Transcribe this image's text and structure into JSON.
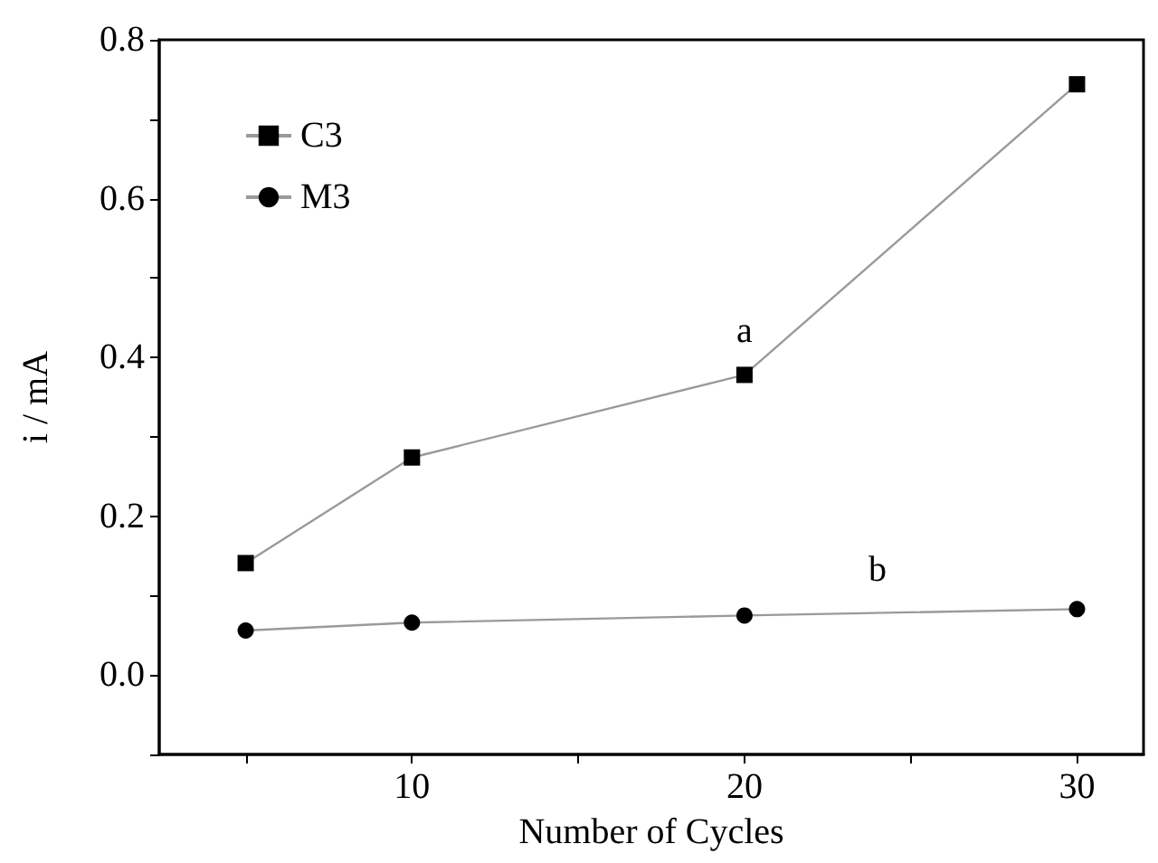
{
  "chart_data": {
    "type": "line",
    "xlabel": "Number of Cycles",
    "ylabel": "i / mA",
    "x": [
      5,
      10,
      20,
      30
    ],
    "series": [
      {
        "name": "C3",
        "color": "#000000",
        "marker": "square",
        "values": [
          0.141,
          0.274,
          0.378,
          0.744
        ]
      },
      {
        "name": "M3",
        "color": "#000000",
        "marker": "circle",
        "values": [
          0.056,
          0.066,
          0.075,
          0.083
        ]
      }
    ],
    "xlim": [
      2.4,
      32
    ],
    "xticks": [
      {
        "value": 5,
        "label": null
      },
      10,
      {
        "value": 15,
        "label": null
      },
      20,
      {
        "value": 25,
        "label": null
      },
      30
    ],
    "ylim": [
      -0.1,
      0.8
    ],
    "yticks": [
      {
        "value": -0.1,
        "label": null
      },
      {
        "value": 0,
        "label": "0.0"
      },
      {
        "value": 0.1,
        "label": null
      },
      0.2,
      {
        "value": 0.3,
        "label": null
      },
      0.4,
      {
        "value": 0.5,
        "label": null
      },
      0.6,
      {
        "value": 0.7,
        "label": null
      },
      0.8
    ],
    "annotations": [
      "a",
      "b"
    ],
    "legend": "top left",
    "grid": false,
    "line_style": "solid"
  }
}
